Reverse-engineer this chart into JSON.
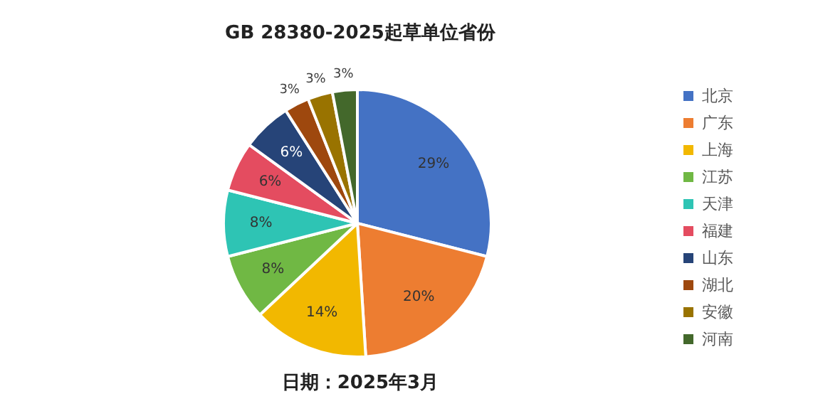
{
  "chart_data": {
    "type": "pie",
    "title": "GB 28380-2025起草单位省份",
    "categories": [
      "北京",
      "广东",
      "上海",
      "江苏",
      "天津",
      "福建",
      "山东",
      "湖北",
      "安徽",
      "河南"
    ],
    "values": [
      29,
      20,
      14,
      8,
      8,
      6,
      6,
      3,
      3,
      3
    ],
    "colors": [
      "#4472c4",
      "#ed7d31",
      "#f2b800",
      "#70b844",
      "#2ec4b4",
      "#e44c60",
      "#264478",
      "#9e480e",
      "#997300",
      "#43682b"
    ],
    "value_labels": [
      "29%",
      "20%",
      "14%",
      "8%",
      "8%",
      "6%",
      "6%",
      "3%",
      "3%",
      "3%"
    ],
    "legend": "right",
    "annotations": [
      "日期：2025年3月"
    ]
  }
}
